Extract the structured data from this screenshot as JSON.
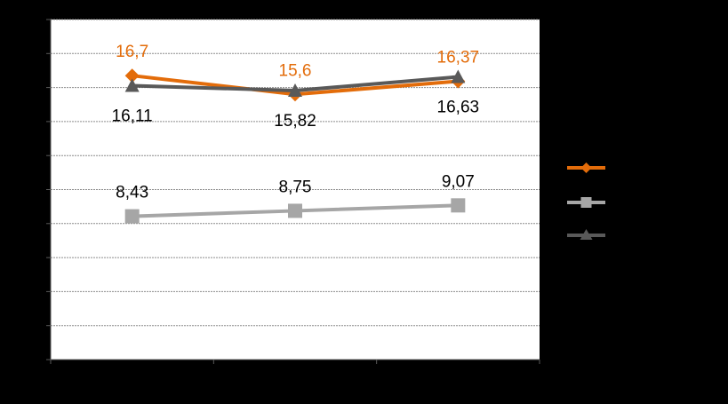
{
  "chart_data": {
    "type": "line",
    "title": "",
    "xlabel": "",
    "ylabel": "",
    "categories": [
      "",
      "",
      ""
    ],
    "ylim": [
      0,
      20
    ],
    "grid": true,
    "legend_placement": "right",
    "series": [
      {
        "color": "#E36C0A",
        "marker": "diamond",
        "values": [
          16.7,
          15.6,
          16.37
        ],
        "labels": [
          "16,7",
          "15,6",
          "16,37"
        ],
        "label_color": "#E36C0A",
        "label_position": "above"
      },
      {
        "color": "#A6A6A6",
        "marker": "square",
        "values": [
          8.43,
          8.75,
          9.07
        ],
        "labels": [
          "8,43",
          "8,75",
          "9,07"
        ],
        "label_color": "#000000",
        "label_position": "above"
      },
      {
        "color": "#595959",
        "marker": "triangle",
        "values": [
          16.11,
          15.82,
          16.63
        ],
        "labels": [
          "16,11",
          "15,82",
          "16,63"
        ],
        "label_color": "#000000",
        "label_position": "below"
      }
    ]
  }
}
